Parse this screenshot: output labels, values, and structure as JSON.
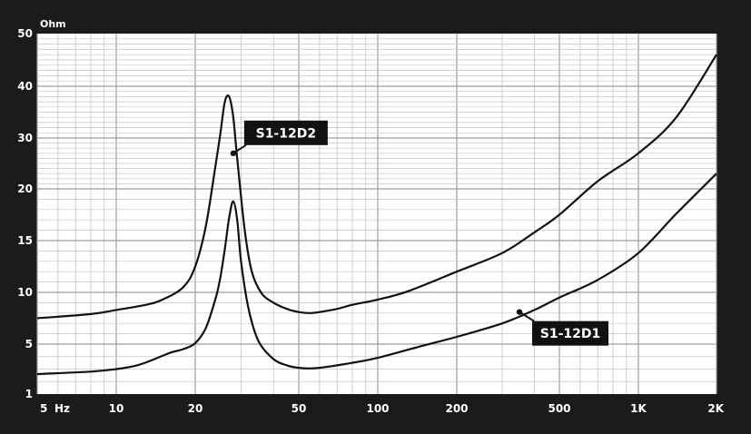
{
  "chart_data": {
    "type": "line",
    "title": "",
    "ylabel": "Ohm",
    "xlabel": "Hz",
    "x_scale": "log",
    "xlim": [
      5,
      2000
    ],
    "ylim": [
      1,
      50
    ],
    "x_ticks": [
      {
        "value": 5,
        "label": "5"
      },
      {
        "value": 10,
        "label": "10"
      },
      {
        "value": 20,
        "label": "20"
      },
      {
        "value": 50,
        "label": "50"
      },
      {
        "value": 100,
        "label": "100"
      },
      {
        "value": 200,
        "label": "200"
      },
      {
        "value": 500,
        "label": "500"
      },
      {
        "value": 1000,
        "label": "1K"
      },
      {
        "value": 2000,
        "label": "2K"
      }
    ],
    "y_ticks": [
      {
        "value": 1,
        "label": "1"
      },
      {
        "value": 5,
        "label": "5"
      },
      {
        "value": 10,
        "label": "10"
      },
      {
        "value": 15,
        "label": "15"
      },
      {
        "value": 20,
        "label": "20"
      },
      {
        "value": 30,
        "label": "30"
      },
      {
        "value": 40,
        "label": "40"
      },
      {
        "value": 50,
        "label": "50"
      }
    ],
    "series": [
      {
        "name": "S1-12D2",
        "x": [
          5,
          8,
          10,
          13,
          15,
          18,
          20,
          22,
          24,
          25,
          26,
          27,
          28,
          29,
          31,
          33,
          36,
          40,
          45,
          50,
          55,
          60,
          70,
          80,
          100,
          130,
          200,
          300,
          400,
          500,
          700,
          1000,
          1400,
          2000
        ],
        "y": [
          7.5,
          7.9,
          8.3,
          8.8,
          9.3,
          10.5,
          12.5,
          16.5,
          25,
          31,
          37,
          38,
          34,
          26,
          16,
          12,
          9.9,
          9.0,
          8.4,
          8.1,
          8.0,
          8.1,
          8.4,
          8.8,
          9.3,
          10.1,
          12.0,
          13.8,
          15.8,
          17.5,
          21.5,
          27,
          34,
          46
        ]
      },
      {
        "name": "S1-12D1",
        "x": [
          5,
          8,
          10,
          12,
          14,
          16,
          18,
          20,
          22,
          24,
          25,
          26,
          27,
          28,
          29,
          30,
          32,
          35,
          40,
          45,
          50,
          55,
          60,
          70,
          80,
          100,
          150,
          200,
          300,
          400,
          500,
          700,
          1000,
          1400,
          2000
        ],
        "y": [
          2.6,
          2.8,
          3.0,
          3.3,
          3.8,
          4.3,
          4.6,
          5.1,
          6.6,
          9.5,
          11.5,
          14.2,
          17.2,
          18.8,
          17,
          13,
          8.5,
          5.3,
          3.8,
          3.3,
          3.1,
          3.05,
          3.1,
          3.3,
          3.5,
          3.9,
          4.9,
          5.7,
          7.0,
          8.3,
          9.5,
          11.2,
          13.8,
          17.6,
          23
        ]
      }
    ],
    "annotations": [
      {
        "series": "S1-12D2",
        "text": "S1-12D2",
        "x": 28,
        "y": 27
      },
      {
        "series": "S1-12D1",
        "text": "S1-12D1",
        "x": 350,
        "y": 8.1
      }
    ],
    "x_unit_label": "Hz",
    "grid": true
  },
  "colors": {
    "frame": "#1b1b1b",
    "plot_bg": "#ffffff",
    "grid": "#c4c4c4",
    "grid_major": "#9e9e9e",
    "line": "#111111",
    "callout_bg": "#111111",
    "callout_text": "#ffffff"
  }
}
